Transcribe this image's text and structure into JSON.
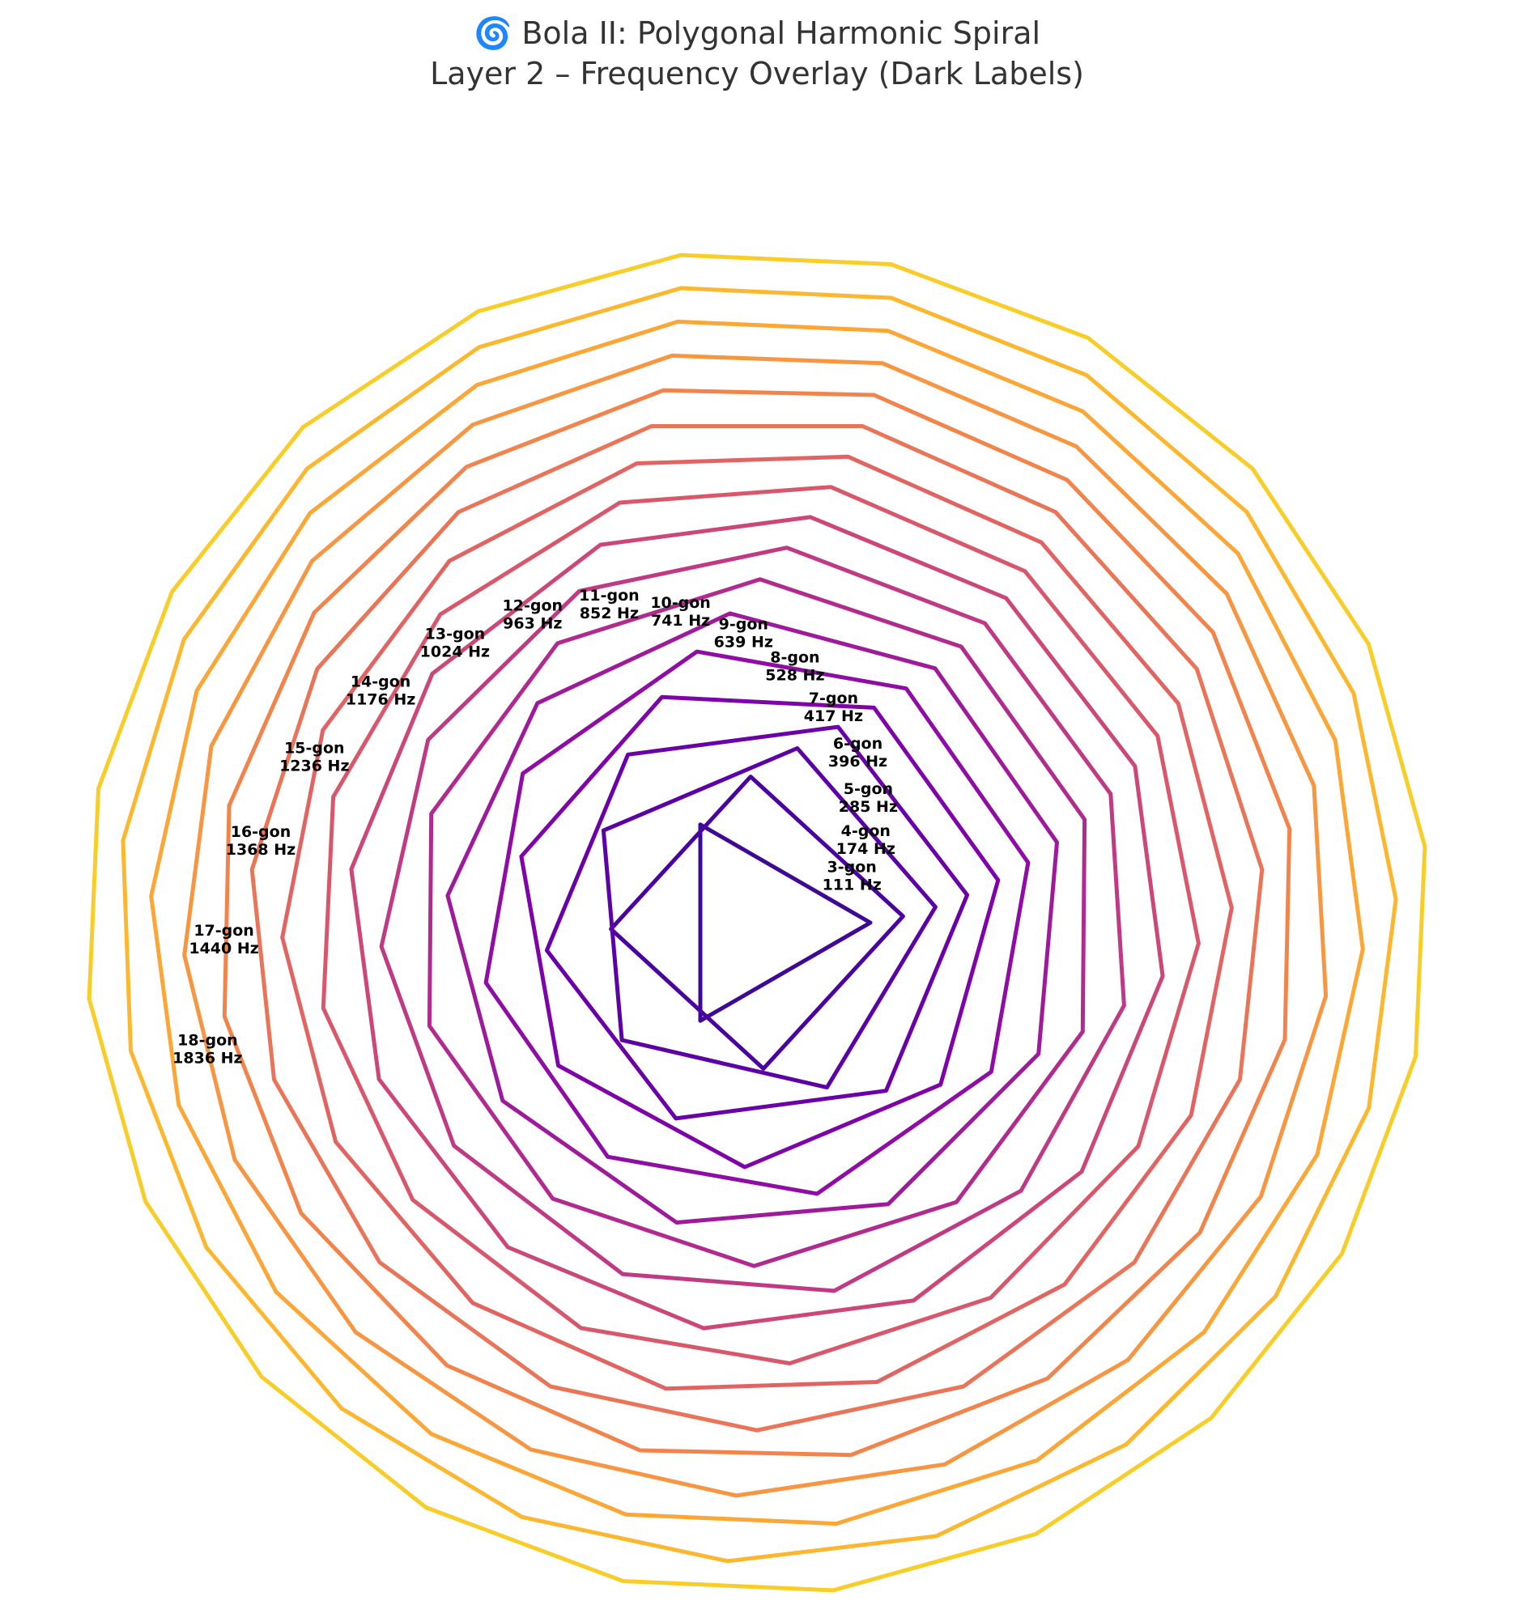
{
  "title": {
    "line1": "🌀 Bola II: Polygonal Harmonic Spiral",
    "line2": "Layer 2 – Frequency Overlay (Dark Labels)"
  },
  "polygons": [
    {
      "sides": 3,
      "label": "3-gon",
      "freq": "111 Hz",
      "color": "#3e0994"
    },
    {
      "sides": 4,
      "label": "4-gon",
      "freq": "174 Hz",
      "color": "#4a03a0"
    },
    {
      "sides": 5,
      "label": "5-gon",
      "freq": "285 Hz",
      "color": "#5b01a5"
    },
    {
      "sides": 6,
      "label": "6-gon",
      "freq": "396 Hz",
      "color": "#6a00a8"
    },
    {
      "sides": 7,
      "label": "7-gon",
      "freq": "417 Hz",
      "color": "#7e03a8"
    },
    {
      "sides": 8,
      "label": "8-gon",
      "freq": "528 Hz",
      "color": "#8f0da4"
    },
    {
      "sides": 9,
      "label": "9-gon",
      "freq": "639 Hz",
      "color": "#9f1a9b"
    },
    {
      "sides": 10,
      "label": "10-gon",
      "freq": "741 Hz",
      "color": "#b12a90"
    },
    {
      "sides": 11,
      "label": "11-gon",
      "freq": "852 Hz",
      "color": "#bf3984"
    },
    {
      "sides": 12,
      "label": "12-gon",
      "freq": "963 Hz",
      "color": "#cc4778"
    },
    {
      "sides": 13,
      "label": "13-gon",
      "freq": "1024 Hz",
      "color": "#d8576b"
    },
    {
      "sides": 14,
      "label": "14-gon",
      "freq": "1176 Hz",
      "color": "#e16462"
    },
    {
      "sides": 15,
      "label": "15-gon",
      "freq": "1236 Hz",
      "color": "#ea7457"
    },
    {
      "sides": 16,
      "label": "16-gon",
      "freq": "1368 Hz",
      "color": "#f2844b"
    },
    {
      "sides": 17,
      "label": "17-gon",
      "freq": "1440 Hz",
      "color": "#f89540"
    },
    {
      "sides": 18,
      "label": "18-gon",
      "freq": "1836 Hz",
      "color": "#fca636"
    },
    {
      "sides": 19,
      "color": "#fdb72f"
    },
    {
      "sides": 20,
      "color": "#f9cd27"
    }
  ]
}
